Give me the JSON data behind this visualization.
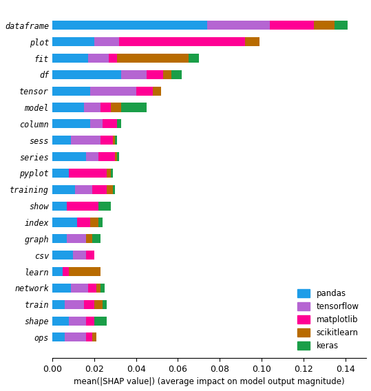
{
  "categories": [
    "dataframe",
    "plot",
    "fit",
    "df",
    "tensor",
    "model",
    "column",
    "sess",
    "series",
    "pyplot",
    "training",
    "show",
    "index",
    "graph",
    "csv",
    "learn",
    "network",
    "train",
    "shape",
    "ops"
  ],
  "colors": {
    "pandas": "#1e9de8",
    "tensorflow": "#b565d2",
    "matplotlib": "#ff0094",
    "scikitlearn": "#b86b00",
    "keras": "#1a9e48"
  },
  "legend_labels": [
    "pandas",
    "tensorflow",
    "matplotlib",
    "scikitlearn",
    "keras"
  ],
  "data": {
    "pandas": [
      0.074,
      0.02,
      0.017,
      0.033,
      0.018,
      0.015,
      0.018,
      0.009,
      0.016,
      0.008,
      0.011,
      0.007,
      0.012,
      0.007,
      0.01,
      0.005,
      0.009,
      0.006,
      0.008,
      0.006
    ],
    "tensorflow": [
      0.03,
      0.012,
      0.01,
      0.012,
      0.022,
      0.008,
      0.006,
      0.014,
      0.006,
      0.0,
      0.008,
      0.0,
      0.0,
      0.009,
      0.006,
      0.0,
      0.008,
      0.009,
      0.008,
      0.01
    ],
    "matplotlib": [
      0.021,
      0.06,
      0.004,
      0.008,
      0.008,
      0.005,
      0.007,
      0.006,
      0.008,
      0.018,
      0.007,
      0.015,
      0.006,
      0.0,
      0.004,
      0.003,
      0.004,
      0.005,
      0.004,
      0.003
    ],
    "scikitlearn": [
      0.01,
      0.007,
      0.034,
      0.004,
      0.004,
      0.005,
      0.0,
      0.001,
      0.001,
      0.002,
      0.003,
      0.0,
      0.004,
      0.003,
      0.0,
      0.015,
      0.002,
      0.004,
      0.0,
      0.002
    ],
    "keras": [
      0.006,
      0.0,
      0.005,
      0.005,
      0.0,
      0.012,
      0.002,
      0.001,
      0.001,
      0.001,
      0.001,
      0.006,
      0.002,
      0.004,
      0.0,
      0.0,
      0.002,
      0.002,
      0.006,
      0.0
    ]
  },
  "xlabel": "mean(|SHAP value|) (average impact on model output magnitude)",
  "xlim": [
    0.0,
    0.15
  ],
  "xticks": [
    0.0,
    0.02,
    0.04,
    0.06,
    0.08,
    0.1,
    0.12,
    0.14
  ],
  "xtick_labels": [
    "0.00",
    "0.02",
    "0.04",
    "0.06",
    "0.08",
    "0.10",
    "0.12",
    "0.14"
  ],
  "background_color": "#ffffff",
  "bar_height": 0.55,
  "figwidth": 5.39,
  "figheight": 5.68,
  "dpi": 100
}
